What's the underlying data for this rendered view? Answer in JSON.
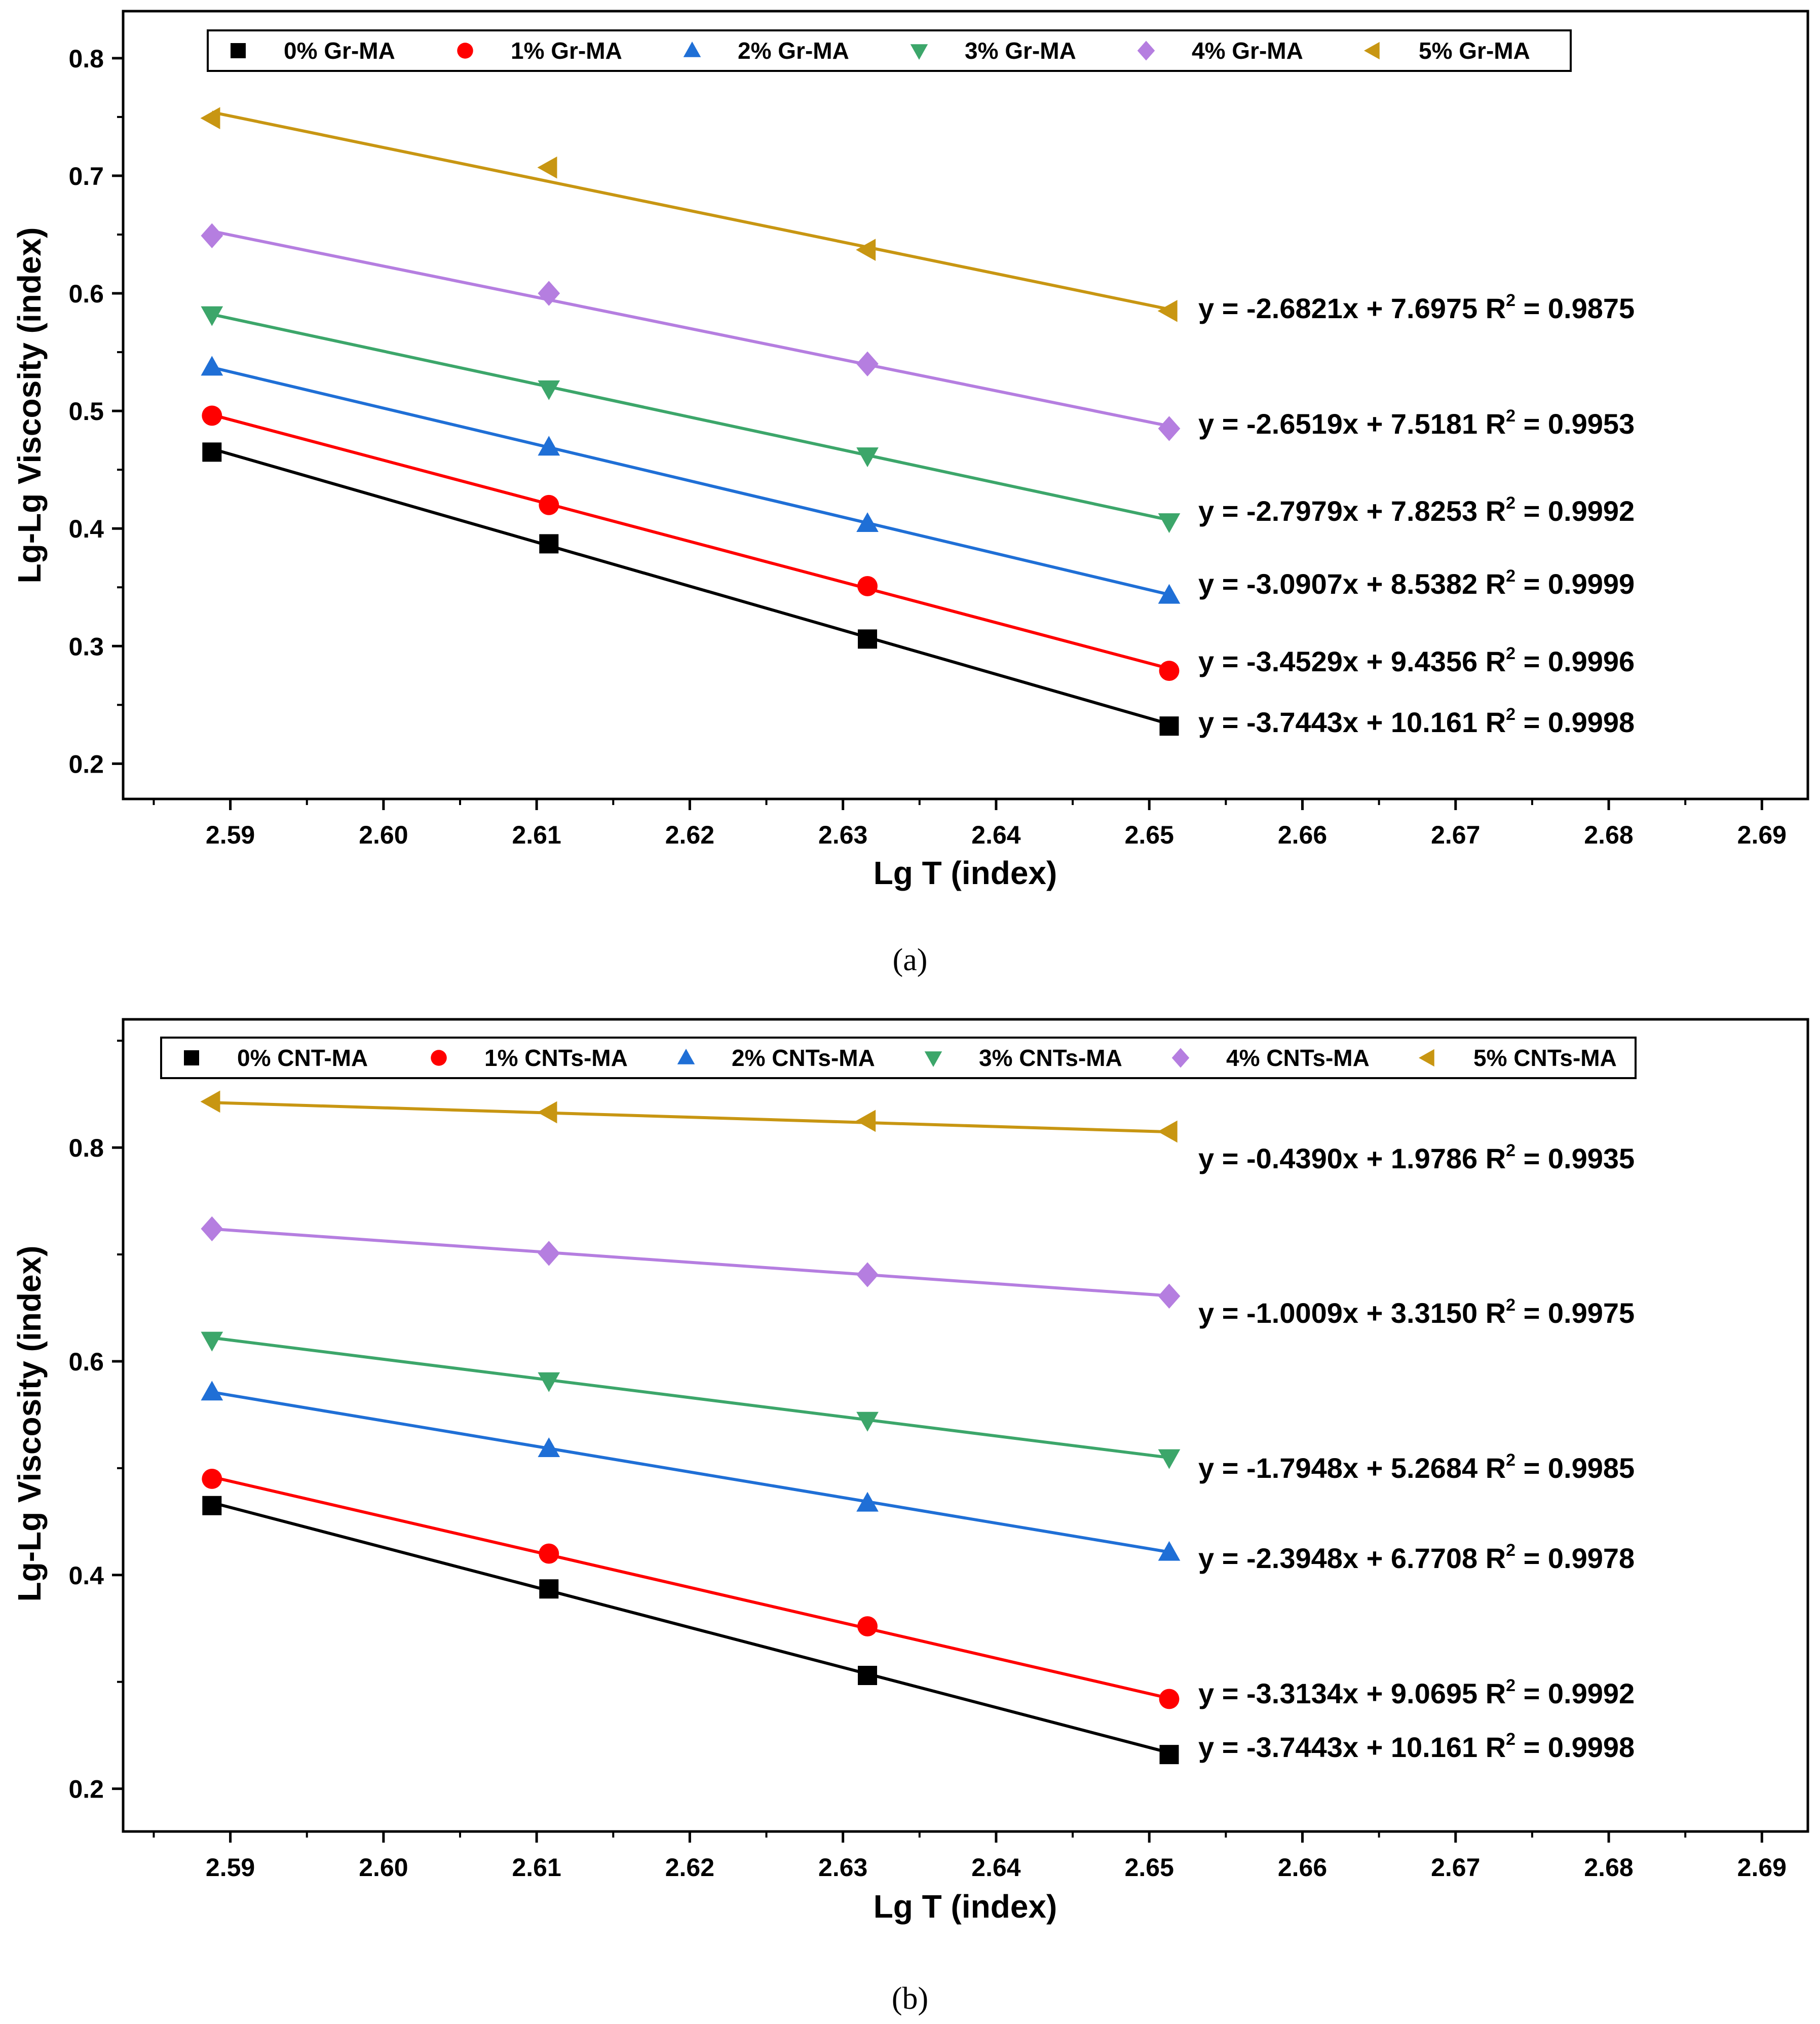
{
  "chart_data": [
    {
      "type": "line",
      "panel": "a",
      "caption": "(a)",
      "xlabel": "Lg T (index)",
      "ylabel": "Lg-Lg Viscosity (index)",
      "xlim": [
        2.583,
        2.693
      ],
      "ylim": [
        0.17,
        0.84
      ],
      "xticks": [
        2.59,
        2.6,
        2.61,
        2.62,
        2.63,
        2.64,
        2.65,
        2.66,
        2.67,
        2.68,
        2.69
      ],
      "xtick_labels": [
        "2.59",
        "2.60",
        "2.61",
        "2.62",
        "2.63",
        "2.64",
        "2.65",
        "2.66",
        "2.67",
        "2.68",
        "2.69"
      ],
      "yticks": [
        0.2,
        0.3,
        0.4,
        0.5,
        0.6,
        0.7,
        0.8
      ],
      "ytick_labels": [
        "0.2",
        "0.3",
        "0.4",
        "0.5",
        "0.6",
        "0.7",
        "0.8"
      ],
      "x": [
        2.5888,
        2.6108,
        2.6316,
        2.6513
      ],
      "legend_position": "top",
      "series": [
        {
          "name": "0% Gr-MA",
          "marker": "square",
          "color": "#000000",
          "values": [
            0.465,
            0.387,
            0.306,
            0.232
          ],
          "fit": {
            "slope": -3.7443,
            "intercept": 10.161
          },
          "equation": "y = -3.7443x + 10.161",
          "r2_prefix": "R",
          "r2_exp": "2",
          "r2_value": " = 0.9998"
        },
        {
          "name": "1% Gr-MA",
          "marker": "circle",
          "color": "#ff0000",
          "values": [
            0.496,
            0.42,
            0.351,
            0.279
          ],
          "fit": {
            "slope": -3.4529,
            "intercept": 9.4356
          },
          "equation": "y = -3.4529x + 9.4356",
          "r2_prefix": "R",
          "r2_exp": "2",
          "r2_value": " = 0.9996"
        },
        {
          "name": "2% Gr-MA",
          "marker": "triangle-up",
          "color": "#1f6fd6",
          "values": [
            0.537,
            0.469,
            0.404,
            0.343
          ],
          "fit": {
            "slope": -3.0907,
            "intercept": 8.5382
          },
          "equation": "y = -3.0907x + 8.5382",
          "r2_prefix": "R",
          "r2_exp": "2",
          "r2_value": " = 0.9999"
        },
        {
          "name": "3% Gr-MA",
          "marker": "triangle-down",
          "color": "#3ca66a",
          "values": [
            0.582,
            0.519,
            0.462,
            0.406
          ],
          "fit": {
            "slope": -2.7979,
            "intercept": 7.8253
          },
          "equation": "y = -2.7979x + 7.8253",
          "r2_prefix": "R",
          "r2_exp": "2",
          "r2_value": " = 0.9992"
        },
        {
          "name": "4% Gr-MA",
          "marker": "diamond",
          "color": "#b57ee0",
          "values": [
            0.649,
            0.6,
            0.54,
            0.485
          ],
          "fit": {
            "slope": -2.6519,
            "intercept": 7.5181
          },
          "equation": "y = -2.6519x + 7.5181",
          "r2_prefix": "R",
          "r2_exp": "2",
          "r2_value": " = 0.9953"
        },
        {
          "name": "5% Gr-MA",
          "marker": "triangle-left",
          "color": "#c89612",
          "values": [
            0.749,
            0.707,
            0.637,
            0.585
          ],
          "fit": {
            "slope": -2.6821,
            "intercept": 7.6975
          },
          "equation": "y = -2.6821x + 7.6975",
          "r2_prefix": "R",
          "r2_exp": "2",
          "r2_value": " = 0.9875"
        }
      ]
    },
    {
      "type": "line",
      "panel": "b",
      "caption": "(b)",
      "xlabel": "Lg T (index)",
      "ylabel": "Lg-Lg Viscosity (index)",
      "xlim": [
        2.583,
        2.693
      ],
      "ylim": [
        0.16,
        0.92
      ],
      "xticks": [
        2.59,
        2.6,
        2.61,
        2.62,
        2.63,
        2.64,
        2.65,
        2.66,
        2.67,
        2.68,
        2.69
      ],
      "xtick_labels": [
        "2.59",
        "2.60",
        "2.61",
        "2.62",
        "2.63",
        "2.64",
        "2.65",
        "2.66",
        "2.67",
        "2.68",
        "2.69"
      ],
      "yticks": [
        0.2,
        0.4,
        0.6,
        0.8
      ],
      "ytick_labels": [
        "0.2",
        "0.4",
        "0.6",
        "0.8"
      ],
      "minor_yticks": [
        0.3,
        0.5,
        0.7,
        0.9
      ],
      "x": [
        2.5888,
        2.6108,
        2.6316,
        2.6513
      ],
      "legend_position": "top",
      "series": [
        {
          "name": "0% CNT-MA",
          "marker": "square",
          "color": "#000000",
          "values": [
            0.465,
            0.387,
            0.306,
            0.232
          ],
          "fit": {
            "slope": -3.7443,
            "intercept": 10.161
          },
          "equation": "y = -3.7443x + 10.161",
          "r2_prefix": "R",
          "r2_exp": "2",
          "r2_value": " = 0.9998"
        },
        {
          "name": "1% CNTs-MA",
          "marker": "circle",
          "color": "#ff0000",
          "values": [
            0.49,
            0.42,
            0.352,
            0.284
          ],
          "fit": {
            "slope": -3.3134,
            "intercept": 9.0695
          },
          "equation": "y = -3.3134x + 9.0695",
          "r2_prefix": "R",
          "r2_exp": "2",
          "r2_value": " = 0.9992"
        },
        {
          "name": "2% CNTs-MA",
          "marker": "triangle-up",
          "color": "#1f6fd6",
          "values": [
            0.571,
            0.518,
            0.467,
            0.421
          ],
          "fit": {
            "slope": -2.3948,
            "intercept": 6.7708
          },
          "equation": "y = -2.3948x + 6.7708",
          "r2_prefix": "R",
          "r2_exp": "2",
          "r2_value": " = 0.9978"
        },
        {
          "name": "3% CNTs-MA",
          "marker": "triangle-down",
          "color": "#3ca66a",
          "values": [
            0.62,
            0.582,
            0.545,
            0.51
          ],
          "fit": {
            "slope": -1.7948,
            "intercept": 5.2684
          },
          "equation": "y = -1.7948x + 5.2684",
          "r2_prefix": "R",
          "r2_exp": "2",
          "r2_value": " = 0.9985"
        },
        {
          "name": "4% CNTs-MA",
          "marker": "diamond",
          "color": "#b57ee0",
          "values": [
            0.724,
            0.701,
            0.681,
            0.661
          ],
          "fit": {
            "slope": -1.0009,
            "intercept": 3.315
          },
          "equation": "y = -1.0009x + 3.3150",
          "r2_prefix": "R",
          "r2_exp": "2",
          "r2_value": " = 0.9975"
        },
        {
          "name": "5% CNTs-MA",
          "marker": "triangle-left",
          "color": "#c89612",
          "values": [
            0.843,
            0.833,
            0.825,
            0.815
          ],
          "fit": {
            "slope": -0.439,
            "intercept": 1.9786
          },
          "equation": "y = -0.4390x + 1.9786",
          "r2_prefix": "R",
          "r2_exp": "2",
          "r2_value": " = 0.9935"
        }
      ]
    }
  ]
}
